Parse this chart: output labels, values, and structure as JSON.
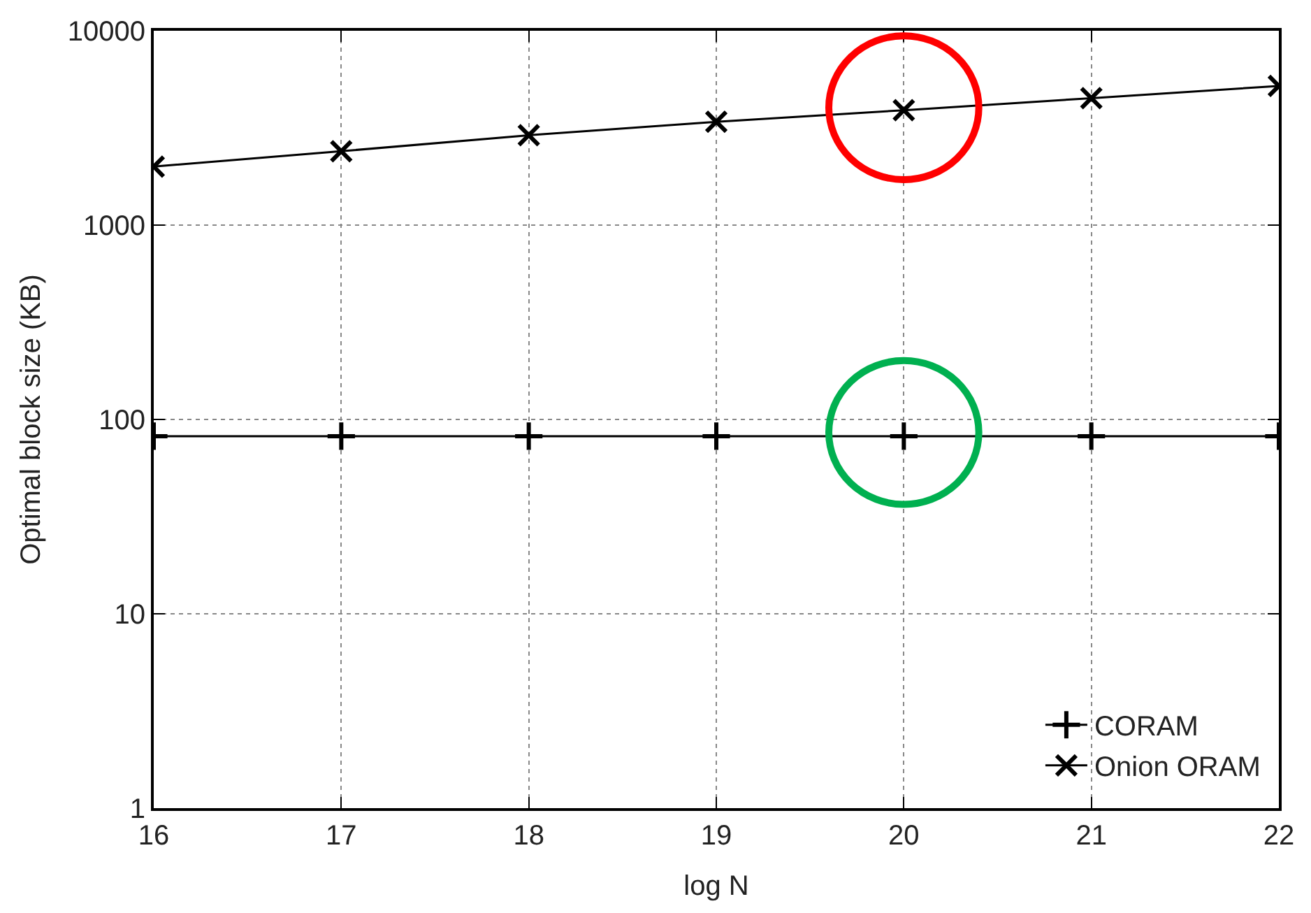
{
  "chart_data": {
    "type": "line",
    "xlabel": "log N",
    "ylabel": "Optimal block size (KB)",
    "x": [
      16,
      17,
      18,
      19,
      20,
      21,
      22
    ],
    "series": [
      {
        "name": "CORAM",
        "color": "#000000",
        "marker": "cross",
        "values": [
          82,
          82,
          82,
          82,
          82,
          82,
          82
        ]
      },
      {
        "name": "Onion ORAM",
        "color": "#000000",
        "marker": "x",
        "values": [
          2000,
          2400,
          2900,
          3400,
          3900,
          4500,
          5200
        ]
      }
    ],
    "log": "y",
    "xlim": [
      16,
      22
    ],
    "ylim": [
      1,
      10000
    ],
    "xticks": [
      16,
      17,
      18,
      19,
      20,
      21,
      22
    ],
    "yticks": [
      1,
      10,
      100,
      1000,
      10000
    ],
    "grid": true,
    "legend": "bottom right",
    "line_style": "solid"
  }
}
